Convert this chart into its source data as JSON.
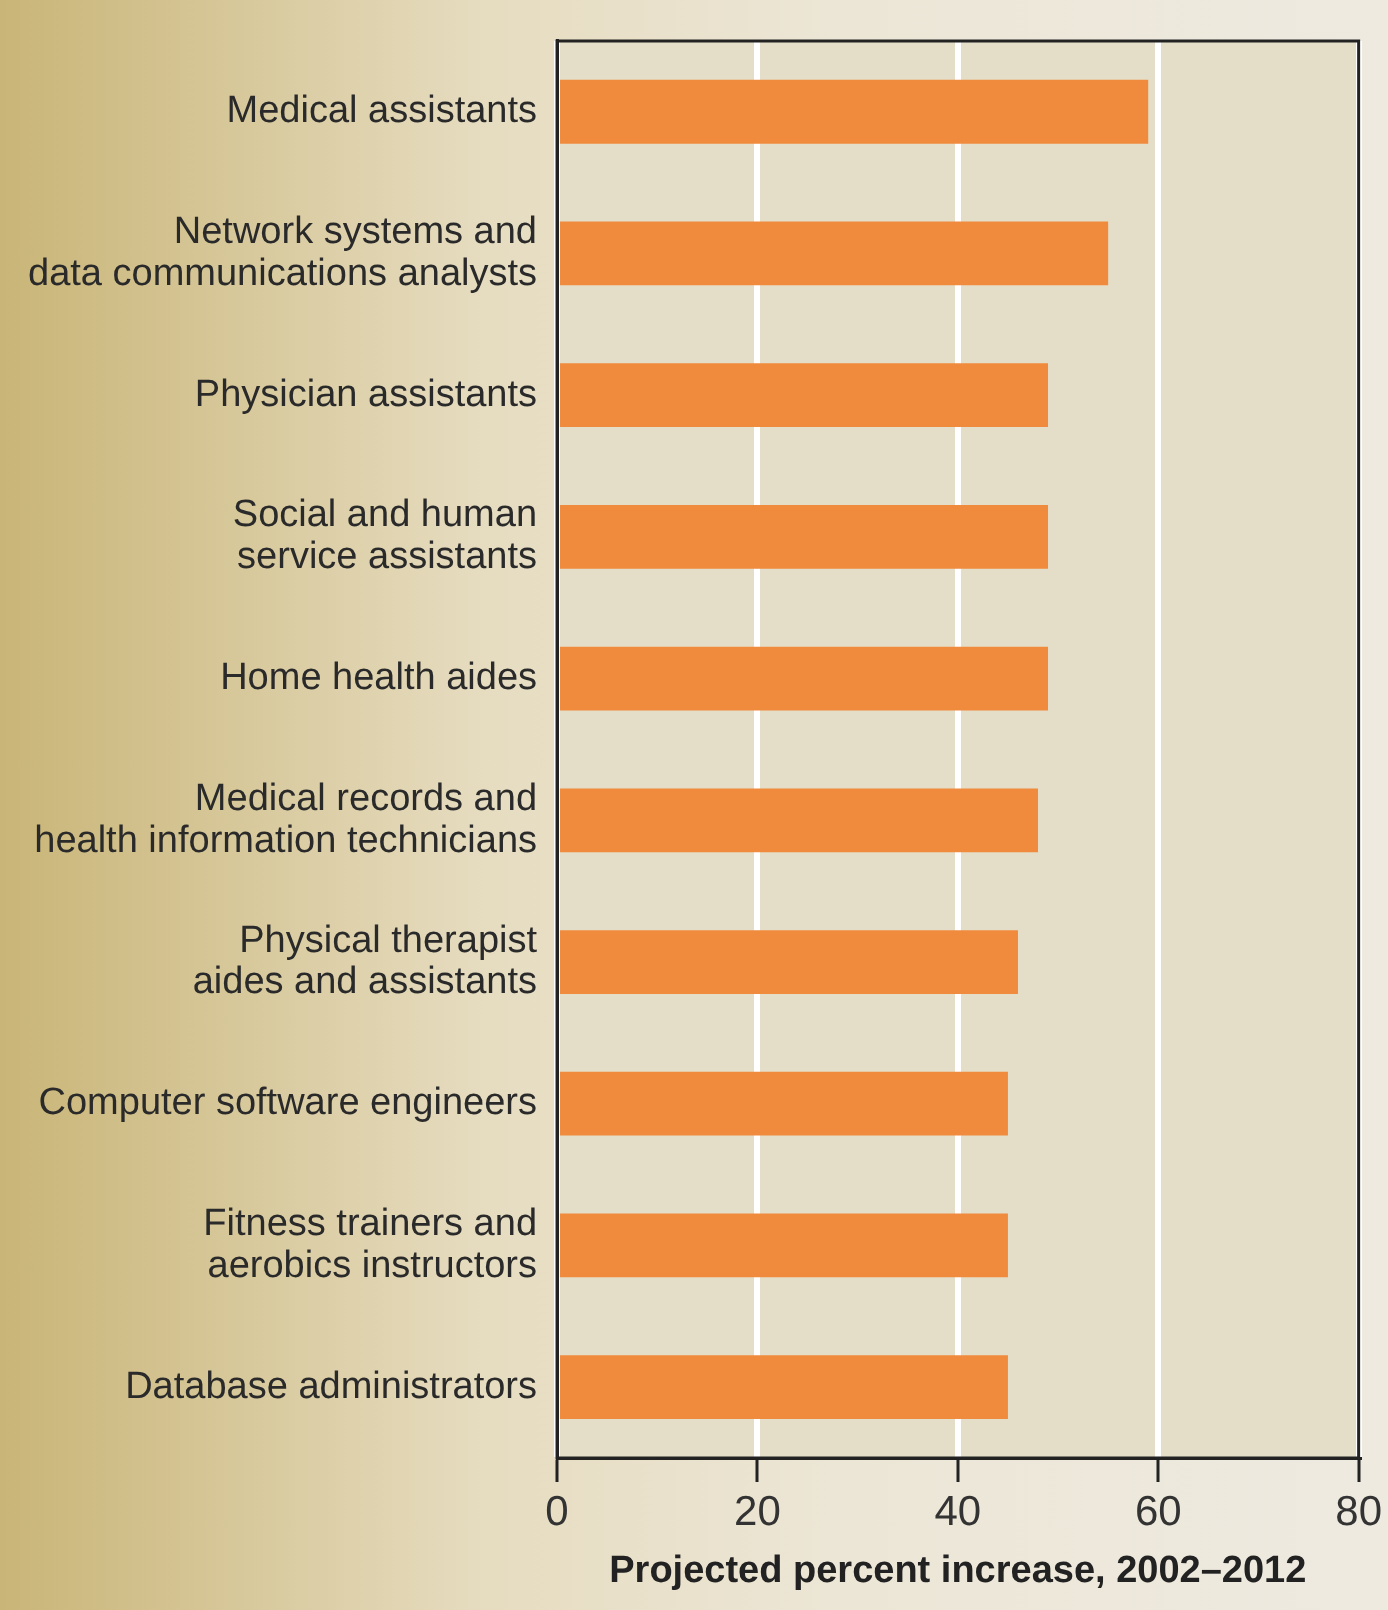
{
  "chart_data": {
    "type": "bar",
    "orientation": "horizontal",
    "xlabel": "Projected percent increase, 2002–2012",
    "categories": [
      "Medical assistants",
      "Network systems and\ndata communications analysts",
      "Physician assistants",
      "Social and human\nservice assistants",
      "Home health aides",
      "Medical records and\nhealth information technicians",
      "Physical therapist\naides and assistants",
      "Computer software engineers",
      "Fitness trainers and\naerobics instructors",
      "Database administrators"
    ],
    "values": [
      59,
      55,
      49,
      49,
      49,
      48,
      46,
      45,
      45,
      45
    ],
    "color": "#f08a3c",
    "xlim": [
      0,
      80
    ],
    "xticks": [
      0,
      20,
      40,
      60,
      80
    ],
    "grid": "x",
    "legend": false
  }
}
